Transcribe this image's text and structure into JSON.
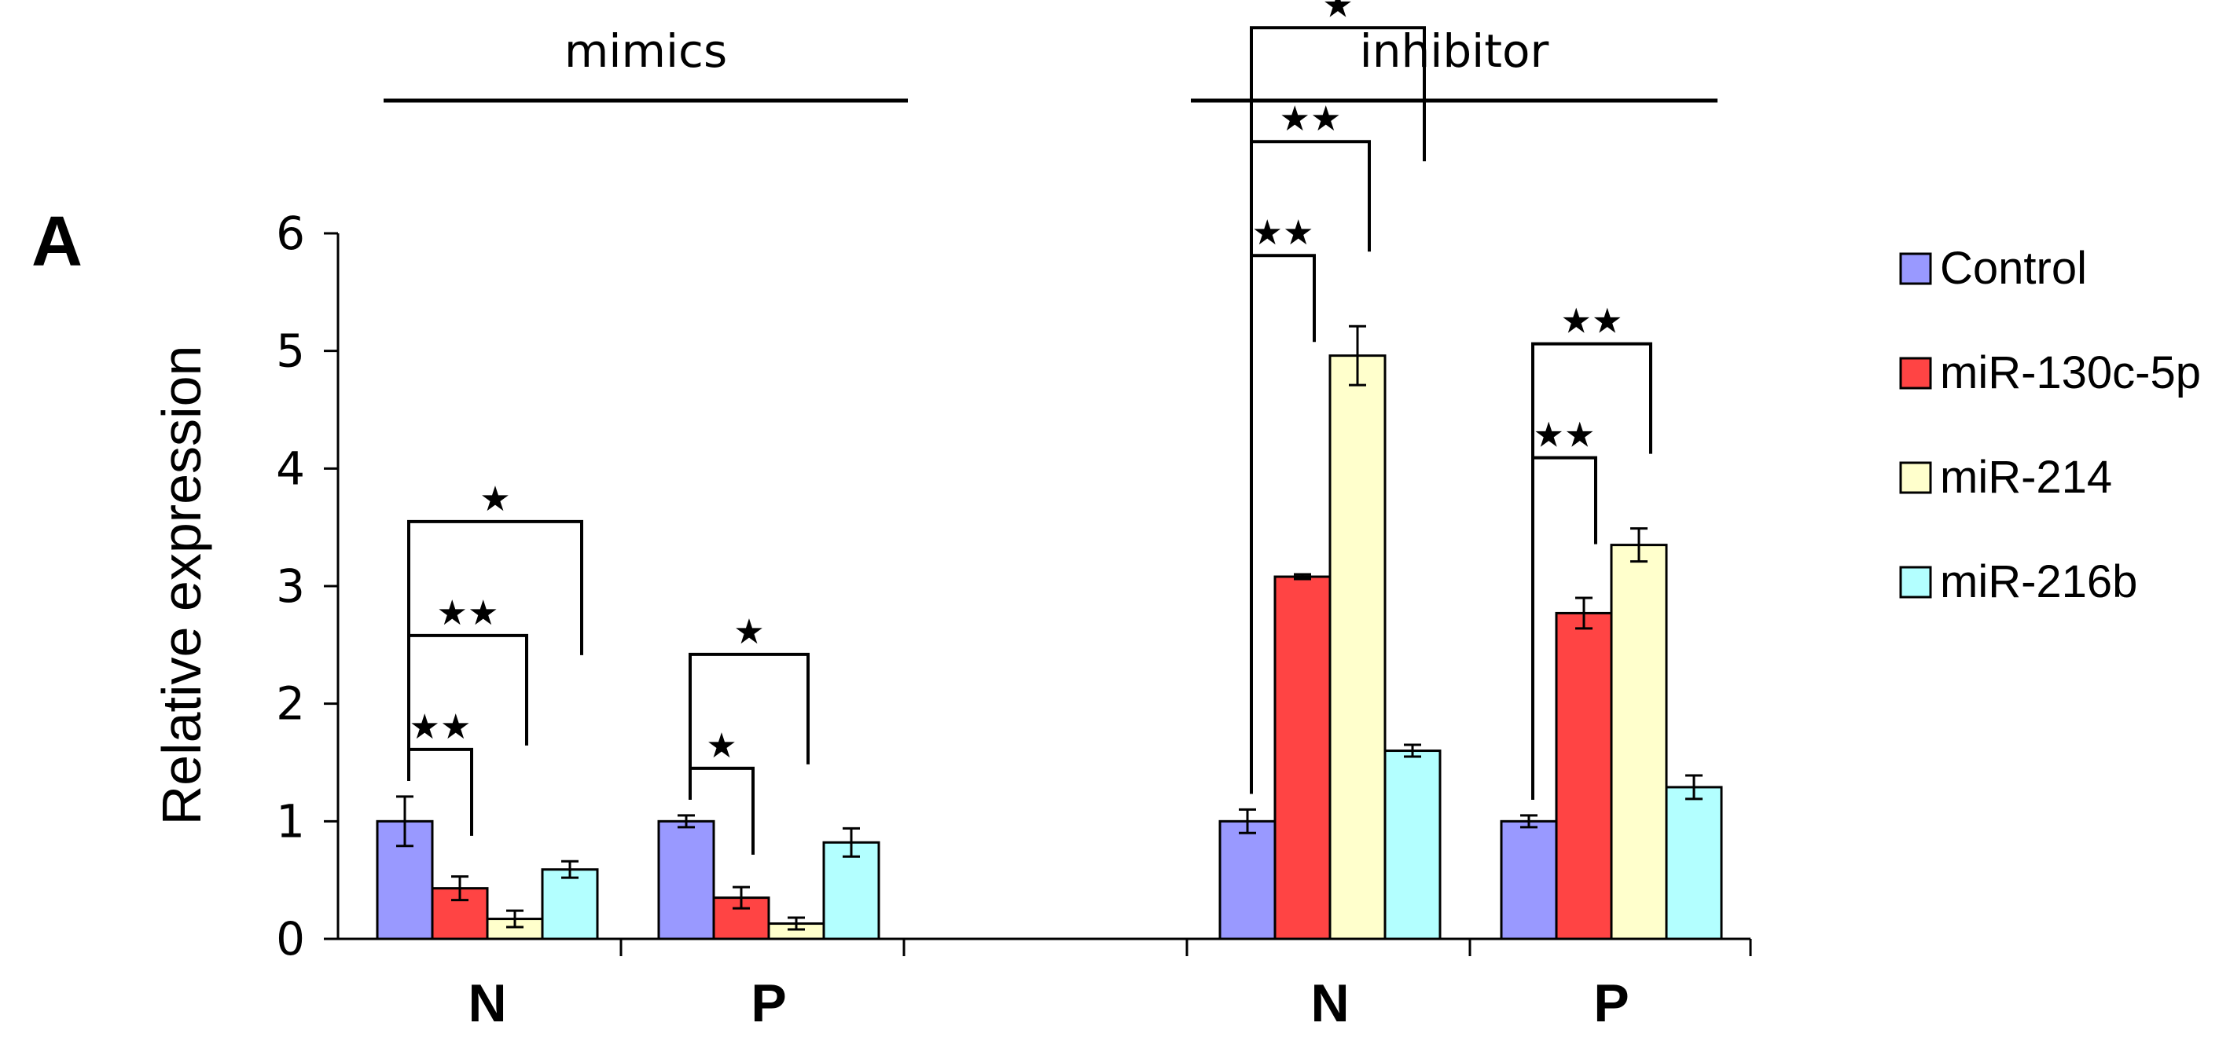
{
  "panel_label": "A",
  "chart_data": {
    "type": "bar",
    "title": "",
    "ylabel": "Relative expression",
    "xlabel": "",
    "ylim": [
      0,
      6
    ],
    "yticks": [
      0,
      1,
      2,
      3,
      4,
      5,
      6
    ],
    "group_labels": [
      {
        "label": "mimics"
      },
      {
        "label": "inhibitor"
      }
    ],
    "categories": [
      "N",
      "P",
      "N",
      "P"
    ],
    "category_group": [
      "mimics",
      "mimics",
      "inhibitor",
      "inhibitor"
    ],
    "series": [
      {
        "name": "Control",
        "color": "#9999ff",
        "values": [
          1.0,
          1.0,
          1.0,
          1.0
        ],
        "errors": [
          0.21,
          0.05,
          0.1,
          0.05
        ]
      },
      {
        "name": "miR-130c-5p",
        "color": "#ff4444",
        "values": [
          0.43,
          0.35,
          3.08,
          2.77
        ],
        "errors": [
          0.1,
          0.09,
          0.02,
          0.13
        ]
      },
      {
        "name": "miR-214",
        "color": "#ffffcc",
        "values": [
          0.17,
          0.13,
          4.96,
          3.35
        ],
        "errors": [
          0.07,
          0.05,
          0.25,
          0.14
        ]
      },
      {
        "name": "miR-216b",
        "color": "#b3ffff",
        "values": [
          0.59,
          0.82,
          1.6,
          1.29
        ],
        "errors": [
          0.07,
          0.12,
          0.05,
          0.1
        ]
      }
    ],
    "significance": [
      {
        "category_index": 0,
        "from_series": 0,
        "to_series": 1,
        "label": "★★"
      },
      {
        "category_index": 0,
        "from_series": 0,
        "to_series": 2,
        "label": "★★"
      },
      {
        "category_index": 0,
        "from_series": 0,
        "to_series": 3,
        "label": "★"
      },
      {
        "category_index": 1,
        "from_series": 0,
        "to_series": 1,
        "label": "★"
      },
      {
        "category_index": 1,
        "from_series": 0,
        "to_series": 2,
        "label": "★"
      },
      {
        "category_index": 2,
        "from_series": 0,
        "to_series": 1,
        "label": "★★"
      },
      {
        "category_index": 2,
        "from_series": 0,
        "to_series": 2,
        "label": "★★"
      },
      {
        "category_index": 2,
        "from_series": 0,
        "to_series": 3,
        "label": "★"
      },
      {
        "category_index": 3,
        "from_series": 0,
        "to_series": 1,
        "label": "★★"
      },
      {
        "category_index": 3,
        "from_series": 0,
        "to_series": 2,
        "label": "★★"
      }
    ],
    "legend_position": "right"
  }
}
